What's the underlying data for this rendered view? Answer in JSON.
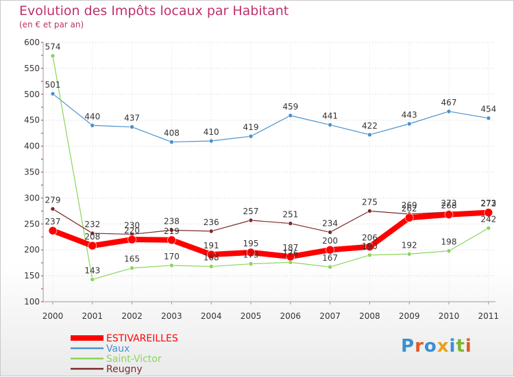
{
  "title": "Evolution des Impôts locaux par Habitant",
  "subtitle": "(en € et par an)",
  "logo": {
    "text": "Proxiti",
    "letters": [
      "P",
      "r",
      "o",
      "x",
      "i",
      "t",
      "i"
    ],
    "colors": [
      "#3a8fd0",
      "#e05a28",
      "#3a8fd0",
      "#e8a020",
      "#3a8fd0",
      "#7ab830",
      "#e05a28"
    ]
  },
  "chart_data": {
    "type": "line",
    "title": "Evolution des Impôts locaux par Habitant",
    "subtitle": "(en € et par an)",
    "xlabel": "",
    "ylabel": "",
    "x": [
      "2000",
      "2001",
      "2002",
      "2003",
      "2004",
      "2005",
      "2006",
      "2007",
      "2008",
      "2009",
      "2010",
      "2011"
    ],
    "ylim": [
      100,
      600
    ],
    "yticks": [
      100,
      150,
      200,
      250,
      300,
      350,
      400,
      450,
      500,
      550,
      600
    ],
    "grid": "horizontal-dotted",
    "legend_position": "bottom-left",
    "series": [
      {
        "name": "ESTIVAREILLES",
        "color": "#ff0000",
        "values": [
          237,
          208,
          220,
          219,
          191,
          195,
          187,
          200,
          206,
          262,
          268,
          272
        ]
      },
      {
        "name": "Vaux",
        "color": "#4a90cc",
        "values": [
          501,
          440,
          437,
          408,
          410,
          419,
          459,
          441,
          422,
          443,
          467,
          454
        ]
      },
      {
        "name": "Saint-Victor",
        "color": "#8ad45a",
        "values": [
          574,
          143,
          165,
          170,
          168,
          173,
          176,
          167,
          190,
          192,
          198,
          242
        ]
      },
      {
        "name": "Reugny",
        "color": "#7a2a2a",
        "values": [
          279,
          232,
          230,
          238,
          236,
          257,
          251,
          234,
          275,
          269,
          273,
          273
        ]
      }
    ]
  }
}
